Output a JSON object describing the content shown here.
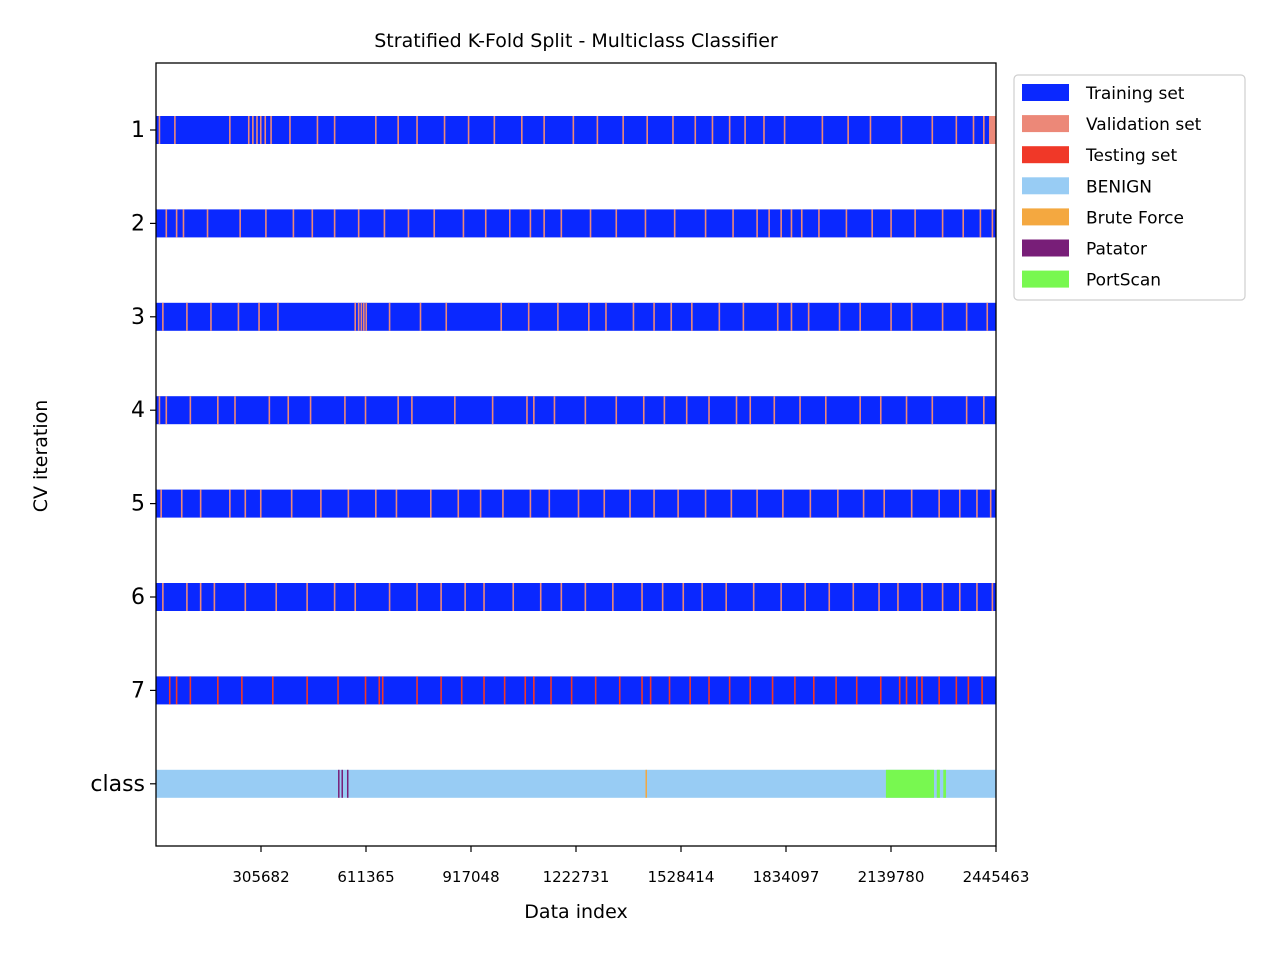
{
  "chart_data": {
    "type": "bar",
    "title": "Stratified K-Fold Split - Multiclass Classifier",
    "xlabel": "Data index",
    "ylabel": "CV iteration",
    "xlim": [
      0,
      2445463
    ],
    "x_ticks": [
      305682,
      611365,
      917048,
      1222731,
      1528414,
      1834097,
      2139780,
      2445463
    ],
    "rows": [
      "1",
      "2",
      "3",
      "4",
      "5",
      "6",
      "7",
      "class"
    ],
    "grid": false,
    "legend_position": "outside top-right",
    "legend": [
      {
        "label": "Training set",
        "color": "#0a28ff"
      },
      {
        "label": "Validation set",
        "color": "#ec8878"
      },
      {
        "label": "Testing set",
        "color": "#f03828"
      },
      {
        "label": "BENIGN",
        "color": "#98ccf4"
      },
      {
        "label": "Brute Force",
        "color": "#f4a840"
      },
      {
        "label": "Patator",
        "color": "#781e78"
      },
      {
        "label": "PortScan",
        "color": "#78f850"
      }
    ],
    "folds": [
      {
        "row": "1",
        "base": "Training set",
        "stripe": "Validation set",
        "stripe_positions": [
          10000,
          55000,
          215000,
          270000,
          282000,
          294000,
          305000,
          318000,
          335000,
          390000,
          470000,
          520000,
          640000,
          705000,
          760000,
          840000,
          910000,
          985000,
          1065000,
          1130000,
          1215000,
          1285000,
          1360000,
          1430000,
          1505000,
          1570000,
          1620000,
          1670000,
          1715000,
          1770000,
          1830000,
          1940000,
          2015000,
          2080000,
          2170000,
          2260000,
          2330000,
          2380000,
          2410000
        ],
        "end_block": [
          2425000,
          2445463
        ]
      },
      {
        "row": "2",
        "base": "Training set",
        "stripe": "Validation set",
        "stripe_positions": [
          30000,
          60000,
          80000,
          150000,
          245000,
          320000,
          400000,
          455000,
          520000,
          590000,
          665000,
          735000,
          810000,
          895000,
          960000,
          1030000,
          1090000,
          1130000,
          1180000,
          1265000,
          1340000,
          1425000,
          1510000,
          1600000,
          1680000,
          1750000,
          1785000,
          1820000,
          1850000,
          1880000,
          1930000,
          2010000,
          2085000,
          2140000,
          2210000,
          2290000,
          2350000,
          2400000,
          2435000
        ]
      },
      {
        "row": "3",
        "base": "Training set",
        "stripe": "Validation set",
        "stripe_positions": [
          20000,
          90000,
          160000,
          240000,
          300000,
          355000,
          580000,
          590000,
          598000,
          605000,
          612000,
          680000,
          770000,
          845000,
          1005000,
          1085000,
          1170000,
          1260000,
          1310000,
          1390000,
          1450000,
          1500000,
          1560000,
          1640000,
          1710000,
          1810000,
          1850000,
          1900000,
          1990000,
          2050000,
          2140000,
          2200000,
          2290000,
          2360000,
          2420000
        ]
      },
      {
        "row": "4",
        "base": "Training set",
        "stripe": "Validation set",
        "stripe_positions": [
          10000,
          30000,
          100000,
          180000,
          230000,
          330000,
          385000,
          450000,
          550000,
          610000,
          705000,
          745000,
          870000,
          980000,
          1080000,
          1100000,
          1160000,
          1250000,
          1340000,
          1420000,
          1480000,
          1545000,
          1610000,
          1690000,
          1730000,
          1800000,
          1875000,
          1950000,
          2050000,
          2110000,
          2185000,
          2260000,
          2360000,
          2410000
        ]
      },
      {
        "row": "5",
        "base": "Training set",
        "stripe": "Validation set",
        "stripe_positions": [
          15000,
          75000,
          130000,
          215000,
          260000,
          305000,
          395000,
          480000,
          560000,
          640000,
          700000,
          800000,
          880000,
          945000,
          1010000,
          1090000,
          1145000,
          1230000,
          1305000,
          1380000,
          1450000,
          1520000,
          1600000,
          1675000,
          1750000,
          1825000,
          1905000,
          1985000,
          2060000,
          2120000,
          2200000,
          2280000,
          2340000,
          2390000,
          2430000
        ]
      },
      {
        "row": "6",
        "base": "Training set",
        "stripe": "Validation set",
        "stripe_positions": [
          20000,
          90000,
          130000,
          170000,
          260000,
          350000,
          440000,
          520000,
          580000,
          680000,
          760000,
          830000,
          900000,
          955000,
          1040000,
          1120000,
          1180000,
          1250000,
          1330000,
          1415000,
          1475000,
          1535000,
          1590000,
          1660000,
          1740000,
          1820000,
          1890000,
          1960000,
          2030000,
          2105000,
          2160000,
          2230000,
          2290000,
          2340000,
          2390000,
          2435000
        ]
      },
      {
        "row": "7",
        "base": "Training set",
        "stripe": "Testing set",
        "stripe_positions": [
          40000,
          60000,
          100000,
          180000,
          250000,
          340000,
          440000,
          530000,
          610000,
          650000,
          660000,
          760000,
          830000,
          890000,
          955000,
          1015000,
          1075000,
          1100000,
          1150000,
          1210000,
          1280000,
          1350000,
          1415000,
          1440000,
          1495000,
          1555000,
          1610000,
          1670000,
          1730000,
          1795000,
          1860000,
          1915000,
          1980000,
          2040000,
          2110000,
          2165000,
          2185000,
          2215000,
          2230000,
          2280000,
          2330000,
          2365000,
          2405000
        ]
      }
    ],
    "class_row": {
      "base": "BENIGN",
      "segments": [
        {
          "label": "Patator",
          "start": 530000,
          "end": 534000
        },
        {
          "label": "Patator",
          "start": 540000,
          "end": 544000
        },
        {
          "label": "Patator",
          "start": 556000,
          "end": 560000
        },
        {
          "label": "Brute Force",
          "start": 1425000,
          "end": 1429000
        },
        {
          "label": "PortScan",
          "start": 2125000,
          "end": 2265000
        },
        {
          "label": "PortScan",
          "start": 2273000,
          "end": 2282000
        },
        {
          "label": "PortScan",
          "start": 2292000,
          "end": 2300000
        }
      ]
    }
  }
}
